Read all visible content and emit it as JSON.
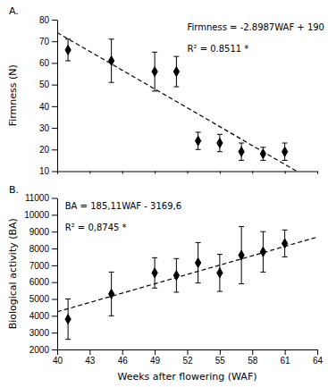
{
  "chart_data": [
    {
      "type": "scatter",
      "title": "A.",
      "x": [
        41,
        45,
        49,
        51,
        53,
        55,
        57,
        59,
        61
      ],
      "values": [
        66,
        61,
        56,
        56,
        24,
        23,
        19,
        18,
        19
      ],
      "yerr": [
        5,
        10,
        9,
        7,
        4,
        4,
        4,
        3,
        4
      ],
      "ylabel": "Firmness (N)",
      "xlim": [
        40,
        64
      ],
      "xticks": [
        40,
        43,
        46,
        49,
        52,
        55,
        58,
        61,
        64
      ],
      "ylim": [
        10,
        80
      ],
      "yticks": [
        10,
        20,
        30,
        40,
        50,
        60,
        70,
        80
      ],
      "marker": "diamond",
      "color": "black",
      "regression": {
        "slope": -2.8987,
        "intercept": 190,
        "color": "black",
        "line_style": "dashed"
      },
      "annotations": [
        "Firmness = -2.8987WAF + 190",
        "R² = 0.8511 *"
      ],
      "tick_labels": "y"
    },
    {
      "type": "scatter",
      "title": "B.",
      "x": [
        41,
        45,
        49,
        51,
        53,
        55,
        57,
        59,
        61
      ],
      "values": [
        3800,
        5300,
        6550,
        6400,
        7150,
        6550,
        7600,
        7800,
        8300
      ],
      "yerr": [
        1200,
        1300,
        900,
        1000,
        1200,
        1100,
        1700,
        1200,
        800
      ],
      "ylabel": "Biological activity (BA)",
      "xlabel": "Weeks after flowering (WAF)",
      "xlim": [
        40,
        64
      ],
      "xticks": [
        40,
        43,
        46,
        49,
        52,
        55,
        58,
        61,
        64
      ],
      "ylim": [
        2000,
        11000
      ],
      "yticks": [
        2000,
        3000,
        4000,
        5000,
        6000,
        7000,
        8000,
        9000,
        10000,
        11000
      ],
      "marker": "diamond",
      "color": "black",
      "regression": {
        "slope": 185.11,
        "intercept": -3169.6,
        "color": "black",
        "line_style": "dashed"
      },
      "annotations": [
        "BA = 185,11WAF - 3169,6",
        "R² = 0,8745 *"
      ]
    }
  ]
}
